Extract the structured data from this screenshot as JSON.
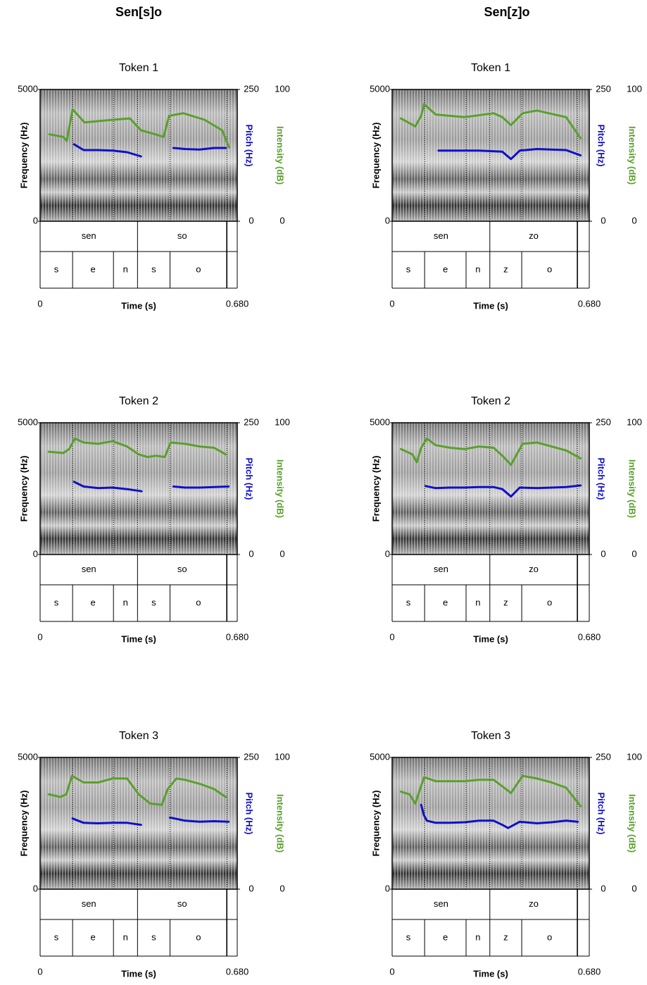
{
  "columns": [
    "Sen[s]o",
    "Sen[z]o"
  ],
  "chart_data": [
    {
      "type": "line",
      "title": "Token 1",
      "xlabel": "Time (s)",
      "ylabel": "Frequency (Hz)",
      "xlim": [
        0,
        0.68
      ],
      "xticks": [
        0,
        {
          "value": 0.68,
          "label": "0.680"
        }
      ],
      "ylim": [
        0,
        5000
      ],
      "yticks": [
        0,
        5000
      ],
      "y2lim": [
        0,
        250
      ],
      "y2ticks": [
        0,
        250
      ],
      "y3lim": [
        0,
        100
      ],
      "y3ticks": [
        0,
        100
      ],
      "series": [
        {
          "name": "Pitch (Hz)",
          "color": "#1010c8",
          "axis": "y2",
          "x": [
            0.117,
            0.15,
            0.2,
            0.25,
            0.3,
            0.348,
            0.4,
            0.46,
            0.5,
            0.55,
            0.6,
            0.64
          ],
          "values": [
            146,
            135,
            135,
            134,
            131,
            123,
            null,
            139,
            137,
            136,
            139,
            139
          ]
        },
        {
          "name": "Intensity (dB)",
          "color": "#5aa02c",
          "axis": "y3",
          "x": [
            0.032,
            0.08,
            0.092,
            0.112,
            0.153,
            0.25,
            0.31,
            0.348,
            0.397,
            0.426,
            0.445,
            0.494,
            0.567,
            0.628,
            0.652
          ],
          "values": [
            66,
            64,
            61,
            85,
            75,
            77,
            78,
            69,
            66,
            64,
            80,
            82,
            77,
            69,
            56
          ]
        }
      ],
      "tiers": [
        {
          "labels": [
            "sen",
            "so",
            null
          ],
          "bounds": [
            0,
            0.336,
            0.644,
            0.68
          ]
        },
        {
          "labels": [
            "s",
            "e",
            "n",
            "s",
            "o",
            null
          ],
          "bounds": [
            0,
            0.112,
            0.253,
            0.336,
            0.448,
            0.644,
            0.68
          ]
        }
      ]
    },
    {
      "type": "line",
      "title": "Token 1",
      "xlabel": "Time (s)",
      "ylabel": "Frequency (Hz)",
      "xlim": [
        0,
        0.68
      ],
      "xticks": [
        0,
        {
          "value": 0.68,
          "label": "0.680"
        }
      ],
      "ylim": [
        0,
        5000
      ],
      "yticks": [
        0,
        5000
      ],
      "y2lim": [
        0,
        250
      ],
      "y2ticks": [
        0,
        250
      ],
      "y3lim": [
        0,
        100
      ],
      "y3ticks": [
        0,
        100
      ],
      "series": [
        {
          "name": "Pitch (Hz)",
          "color": "#1010c8",
          "axis": "y2",
          "x": [
            0.16,
            0.3,
            0.38,
            0.41,
            0.44,
            0.5,
            0.6,
            0.65
          ],
          "values": [
            134,
            134,
            132,
            118,
            134,
            137,
            135,
            125
          ]
        },
        {
          "name": "Intensity (dB)",
          "color": "#5aa02c",
          "axis": "y3",
          "x": [
            0.03,
            0.08,
            0.1,
            0.11,
            0.15,
            0.25,
            0.35,
            0.38,
            0.41,
            0.45,
            0.5,
            0.6,
            0.65
          ],
          "values": [
            78,
            72,
            80,
            89,
            81,
            79,
            82,
            79,
            73,
            82,
            84,
            79,
            63
          ]
        }
      ],
      "tiers": [
        {
          "labels": [
            "sen",
            "zo",
            null
          ],
          "bounds": [
            0,
            0.337,
            0.639,
            0.68
          ]
        },
        {
          "labels": [
            "s",
            "e",
            "n",
            "z",
            "o",
            null
          ],
          "bounds": [
            0,
            0.112,
            0.255,
            0.337,
            0.447,
            0.639,
            0.68
          ]
        }
      ]
    },
    {
      "type": "line",
      "title": "Token 2",
      "xlabel": "Time (s)",
      "ylabel": "Frequency (Hz)",
      "xlim": [
        0,
        0.68
      ],
      "xticks": [
        0,
        {
          "value": 0.68,
          "label": "0.680"
        }
      ],
      "ylim": [
        0,
        5000
      ],
      "yticks": [
        0,
        5000
      ],
      "y2lim": [
        0,
        250
      ],
      "y2ticks": [
        0,
        250
      ],
      "y3lim": [
        0,
        100
      ],
      "y3ticks": [
        0,
        100
      ],
      "series": [
        {
          "name": "Pitch (Hz)",
          "color": "#1010c8",
          "axis": "y2",
          "x": [
            0.117,
            0.15,
            0.2,
            0.25,
            0.3,
            0.35,
            0.4,
            0.46,
            0.5,
            0.55,
            0.6,
            0.65
          ],
          "values": [
            138,
            129,
            126,
            127,
            124,
            120,
            null,
            129,
            127,
            127,
            128,
            129
          ]
        },
        {
          "name": "Intensity (dB)",
          "color": "#5aa02c",
          "axis": "y3",
          "x": [
            0.03,
            0.08,
            0.1,
            0.12,
            0.15,
            0.2,
            0.25,
            0.3,
            0.34,
            0.37,
            0.4,
            0.43,
            0.45,
            0.5,
            0.55,
            0.6,
            0.64
          ],
          "values": [
            78,
            77,
            80,
            88,
            85,
            84,
            86,
            82,
            76,
            74,
            75,
            74,
            85,
            84,
            82,
            81,
            76
          ]
        }
      ],
      "tiers": [
        {
          "labels": [
            "sen",
            "so",
            null
          ],
          "bounds": [
            0,
            0.336,
            0.644,
            0.68
          ]
        },
        {
          "labels": [
            "s",
            "e",
            "n",
            "s",
            "o",
            null
          ],
          "bounds": [
            0,
            0.112,
            0.253,
            0.336,
            0.448,
            0.644,
            0.68
          ]
        }
      ]
    },
    {
      "type": "line",
      "title": "Token 2",
      "xlabel": "Time (s)",
      "ylabel": "Frequency (Hz)",
      "xlim": [
        0,
        0.68
      ],
      "xticks": [
        0,
        {
          "value": 0.68,
          "label": "0.680"
        }
      ],
      "ylim": [
        0,
        5000
      ],
      "yticks": [
        0,
        5000
      ],
      "y2lim": [
        0,
        250
      ],
      "y2ticks": [
        0,
        250
      ],
      "y3lim": [
        0,
        100
      ],
      "y3ticks": [
        0,
        100
      ],
      "series": [
        {
          "name": "Pitch (Hz)",
          "color": "#1010c8",
          "axis": "y2",
          "x": [
            0.115,
            0.15,
            0.2,
            0.25,
            0.3,
            0.35,
            0.38,
            0.41,
            0.44,
            0.5,
            0.55,
            0.6,
            0.65
          ],
          "values": [
            130,
            126,
            127,
            127,
            128,
            128,
            124,
            110,
            127,
            126,
            127,
            128,
            131
          ]
        },
        {
          "name": "Intensity (dB)",
          "color": "#5aa02c",
          "axis": "y3",
          "x": [
            0.03,
            0.07,
            0.085,
            0.1,
            0.12,
            0.15,
            0.2,
            0.25,
            0.3,
            0.35,
            0.38,
            0.41,
            0.45,
            0.5,
            0.55,
            0.6,
            0.65
          ],
          "values": [
            80,
            76,
            70,
            81,
            88,
            83,
            81,
            80,
            82,
            81,
            75,
            68,
            84,
            85,
            82,
            79,
            73
          ]
        }
      ],
      "tiers": [
        {
          "labels": [
            "sen",
            "zo",
            null
          ],
          "bounds": [
            0,
            0.337,
            0.639,
            0.68
          ]
        },
        {
          "labels": [
            "s",
            "e",
            "n",
            "z",
            "o",
            null
          ],
          "bounds": [
            0,
            0.112,
            0.255,
            0.337,
            0.447,
            0.639,
            0.68
          ]
        }
      ]
    },
    {
      "type": "line",
      "title": "Token 3",
      "xlabel": "Time (s)",
      "ylabel": "Frequency (Hz)",
      "xlim": [
        0,
        0.68
      ],
      "xticks": [
        0,
        {
          "value": 0.68,
          "label": "0.680"
        }
      ],
      "ylim": [
        0,
        5000
      ],
      "yticks": [
        0,
        5000
      ],
      "y2lim": [
        0,
        250
      ],
      "y2ticks": [
        0,
        250
      ],
      "y3lim": [
        0,
        100
      ],
      "y3ticks": [
        0,
        100
      ],
      "series": [
        {
          "name": "Pitch (Hz)",
          "color": "#1010c8",
          "axis": "y2",
          "x": [
            0.112,
            0.15,
            0.2,
            0.25,
            0.3,
            0.348,
            0.4,
            0.448,
            0.5,
            0.55,
            0.6,
            0.65
          ],
          "values": [
            134,
            126,
            125,
            126,
            126,
            122,
            null,
            136,
            130,
            128,
            129,
            128
          ]
        },
        {
          "name": "Intensity (dB)",
          "color": "#5aa02c",
          "axis": "y3",
          "x": [
            0.03,
            0.07,
            0.09,
            0.11,
            0.15,
            0.2,
            0.25,
            0.3,
            0.34,
            0.38,
            0.42,
            0.44,
            0.47,
            0.5,
            0.55,
            0.6,
            0.64
          ],
          "values": [
            72,
            70,
            72,
            86,
            81,
            81,
            84,
            84,
            72,
            65,
            64,
            76,
            84,
            83,
            80,
            76,
            70
          ]
        }
      ],
      "tiers": [
        {
          "labels": [
            "sen",
            "so",
            null
          ],
          "bounds": [
            0,
            0.336,
            0.644,
            0.68
          ]
        },
        {
          "labels": [
            "s",
            "e",
            "n",
            "s",
            "o",
            null
          ],
          "bounds": [
            0,
            0.112,
            0.253,
            0.336,
            0.448,
            0.644,
            0.68
          ]
        }
      ]
    },
    {
      "type": "line",
      "title": "Token 3",
      "xlabel": "Time (s)",
      "ylabel": "Frequency (Hz)",
      "xlim": [
        0,
        0.68
      ],
      "xticks": [
        0,
        {
          "value": 0.68,
          "label": "0.680"
        }
      ],
      "ylim": [
        0,
        5000
      ],
      "yticks": [
        0,
        5000
      ],
      "y2lim": [
        0,
        250
      ],
      "y2ticks": [
        0,
        250
      ],
      "y3lim": [
        0,
        100
      ],
      "y3ticks": [
        0,
        100
      ],
      "series": [
        {
          "name": "Pitch (Hz)",
          "color": "#1010c8",
          "axis": "y2",
          "x": [
            0.1,
            0.11,
            0.12,
            0.15,
            0.2,
            0.25,
            0.3,
            0.35,
            0.38,
            0.4,
            0.44,
            0.5,
            0.55,
            0.6,
            0.64
          ],
          "values": [
            160,
            140,
            130,
            126,
            126,
            127,
            130,
            130,
            122,
            116,
            128,
            125,
            127,
            130,
            128
          ]
        },
        {
          "name": "Intensity (dB)",
          "color": "#5aa02c",
          "axis": "y3",
          "x": [
            0.03,
            0.06,
            0.08,
            0.095,
            0.11,
            0.15,
            0.2,
            0.25,
            0.3,
            0.35,
            0.38,
            0.41,
            0.45,
            0.5,
            0.55,
            0.6,
            0.65
          ],
          "values": [
            74,
            72,
            65,
            75,
            85,
            82,
            82,
            82,
            83,
            83,
            78,
            73,
            86,
            84,
            81,
            77,
            63
          ]
        }
      ],
      "tiers": [
        {
          "labels": [
            "sen",
            "zo",
            null
          ],
          "bounds": [
            0,
            0.337,
            0.639,
            0.68
          ]
        },
        {
          "labels": [
            "s",
            "e",
            "n",
            "z",
            "o",
            null
          ],
          "bounds": [
            0,
            0.112,
            0.255,
            0.337,
            0.447,
            0.639,
            0.68
          ]
        }
      ]
    }
  ]
}
